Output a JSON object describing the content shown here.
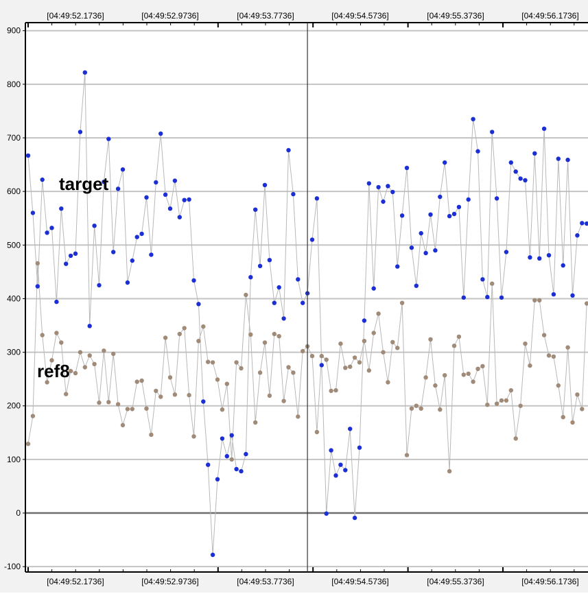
{
  "chart_data": {
    "type": "scatter",
    "x_tick_labels": [
      "[04:49:52.1736]",
      "[04:49:52.9736]",
      "[04:49:53.7736]",
      "[04:49:54.5736]",
      "[04:49:55.3736]",
      "[04:49:56.1736]"
    ],
    "y_ticks": [
      -100,
      0,
      100,
      200,
      300,
      400,
      500,
      600,
      700,
      800,
      900
    ],
    "ylim": [
      -110,
      915
    ],
    "grid": true,
    "cursor_x_index": 59,
    "series": [
      {
        "name": "target",
        "color": "#1c2fd4",
        "values": [
          667,
          560,
          423,
          622,
          523,
          532,
          394,
          568,
          465,
          480,
          484,
          711,
          822,
          349,
          536,
          425,
          618,
          698,
          487,
          605,
          641,
          430,
          471,
          515,
          521,
          589,
          482,
          617,
          708,
          594,
          568,
          620,
          552,
          584,
          585,
          434,
          390,
          208,
          90,
          -78,
          63,
          139,
          106,
          145,
          82,
          78,
          110,
          440,
          566,
          461,
          612,
          472,
          392,
          421,
          363,
          677,
          595,
          436,
          392,
          410,
          510,
          587,
          276,
          -1,
          117,
          70,
          90,
          80,
          157,
          -9,
          122,
          359,
          615,
          419,
          608,
          581,
          610,
          599,
          460,
          555,
          644,
          495,
          424,
          522,
          485,
          557,
          490,
          590,
          654,
          554,
          558,
          571,
          402,
          585,
          735,
          675,
          436,
          403,
          711,
          587,
          402,
          487,
          654,
          637,
          624,
          621,
          477,
          671,
          475,
          717,
          481,
          408,
          661,
          462,
          659,
          406,
          518,
          541,
          540
        ]
      },
      {
        "name": "ref8",
        "color": "#a08a78",
        "values": [
          129,
          181,
          466,
          332,
          244,
          285,
          336,
          318,
          222,
          265,
          261,
          300,
          272,
          294,
          278,
          206,
          303,
          207,
          297,
          203,
          164,
          194,
          194,
          245,
          247,
          195,
          146,
          228,
          217,
          327,
          253,
          221,
          334,
          345,
          220,
          143,
          321,
          348,
          282,
          281,
          249,
          193,
          241,
          100,
          281,
          270,
          407,
          333,
          169,
          262,
          318,
          219,
          334,
          330,
          209,
          272,
          262,
          180,
          302,
          311,
          293,
          151,
          293,
          286,
          228,
          229,
          316,
          271,
          273,
          290,
          281,
          321,
          266,
          336,
          372,
          300,
          244,
          319,
          308,
          392,
          108,
          195,
          200,
          195,
          253,
          324,
          238,
          193,
          257,
          78,
          312,
          329,
          258,
          260,
          245,
          269,
          274,
          202,
          428,
          204,
          210,
          210,
          229,
          139,
          200,
          316,
          275,
          397,
          397,
          332,
          294,
          292,
          238,
          179,
          309,
          169,
          221,
          194,
          391
        ]
      }
    ]
  }
}
